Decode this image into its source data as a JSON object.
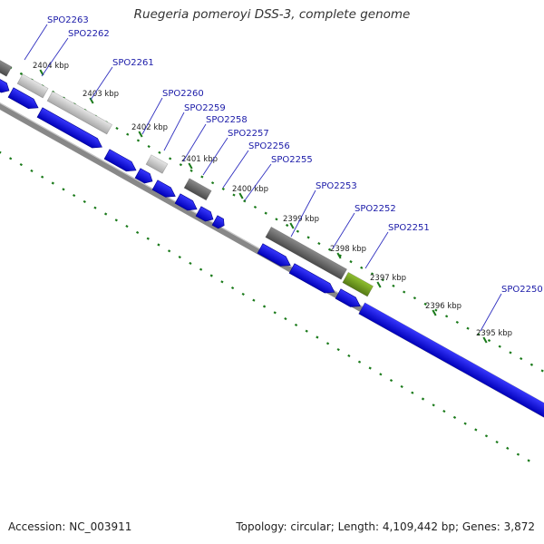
{
  "map": {
    "title": "Ruegeria pomeroyi DSS-3, complete genome",
    "accession": "Accession: NC_003911",
    "stats": "Topology: circular; Length: 4,109,442 bp; Genes: 3,872"
  },
  "colors": {
    "cds_forward": "#1010e0",
    "feature_dark": "#666666",
    "feature_light": "#bbbbbb",
    "feature_green": "#6a9a20",
    "backbone": "#888888",
    "tick": "#1a7a1a",
    "label_line": "#3030c0"
  },
  "ticks": [
    {
      "label": "2404 kbp"
    },
    {
      "label": "2403 kbp"
    },
    {
      "label": "2402 kbp"
    },
    {
      "label": "2401 kbp"
    },
    {
      "label": "2400 kbp"
    },
    {
      "label": "2399 kbp"
    },
    {
      "label": "2398 kbp"
    },
    {
      "label": "2397 kbp"
    },
    {
      "label": "2396 kbp"
    },
    {
      "label": "2395 kbp"
    }
  ],
  "genes": [
    {
      "label": "SPO2263"
    },
    {
      "label": "SPO2262"
    },
    {
      "label": "SPO2261"
    },
    {
      "label": "SPO2260"
    },
    {
      "label": "SPO2259"
    },
    {
      "label": "SPO2258"
    },
    {
      "label": "SPO2257"
    },
    {
      "label": "SPO2256"
    },
    {
      "label": "SPO2255"
    },
    {
      "label": "SPO2253"
    },
    {
      "label": "SPO2252"
    },
    {
      "label": "SPO2251"
    },
    {
      "label": "SPO2250"
    }
  ]
}
